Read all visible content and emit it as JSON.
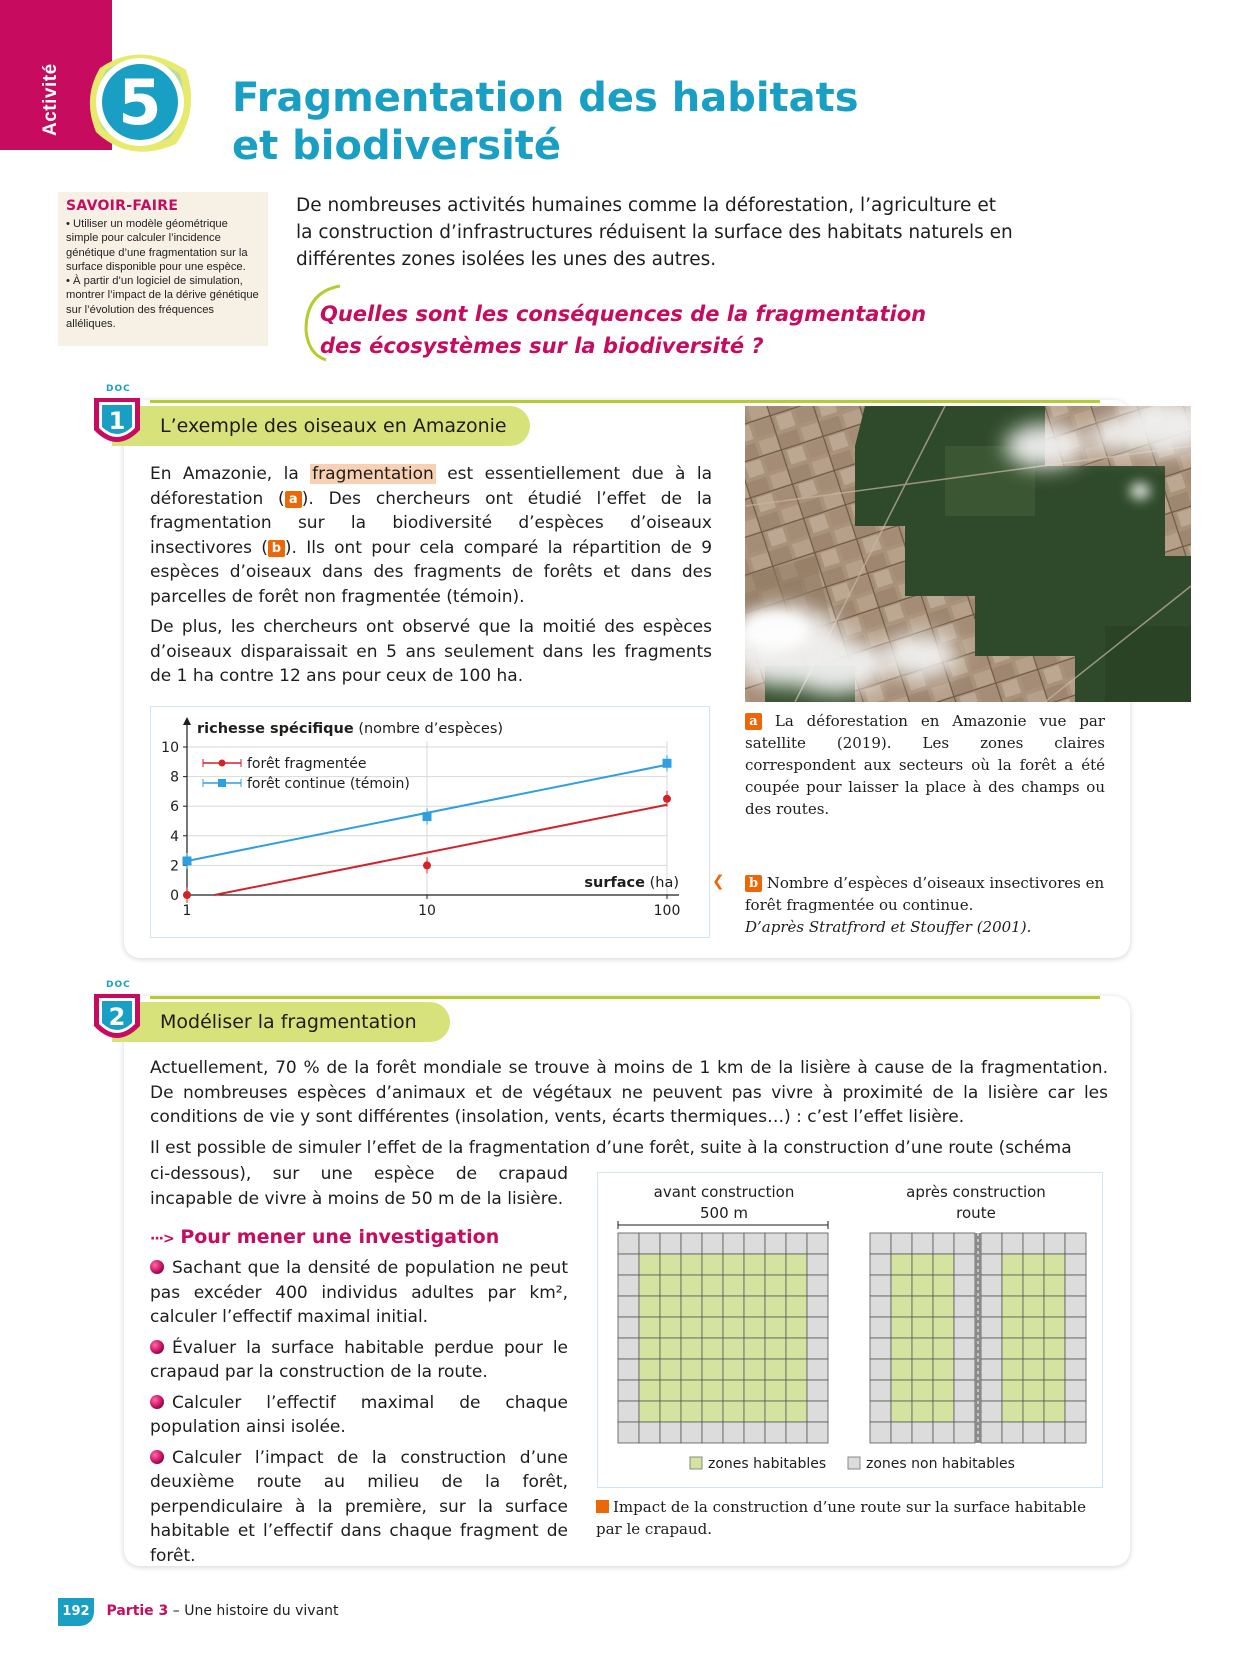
{
  "header": {
    "activity_label": "Activité",
    "activity_number": "5",
    "title_line1": "Fragmentation des habitats",
    "title_line2": "et biodiversité"
  },
  "savoir_faire": {
    "title": "SAVOIR-FAIRE",
    "items": [
      "• Utiliser un modèle géométrique simple pour calculer l’incidence génétique d’une fragmentation sur la surface disponible pour une espèce.",
      "• À partir d’un logiciel de simulation, montrer l’impact de la dérive génétique sur l’évolution des fréquences alléliques."
    ]
  },
  "intro": "De nombreuses activités humaines comme la déforestation, l’agriculture et la construction d’infrastructures réduisent la surface des habitats naturels en différentes zones isolées les unes des autres.",
  "question_line1": "Quelles sont les conséquences de la fragmentation",
  "question_line2": "des écosystèmes sur la biodiversité ?",
  "doc1": {
    "label": "DOC",
    "number": "1",
    "title": "L’exemple des oiseaux en Amazonie",
    "p1_a": "En Amazonie, la ",
    "p1_highlight": "fragmentation",
    "p1_b": " est essentiellement due à la déforestation (",
    "tag_a": "a",
    "p1_c": "). Des chercheurs ont étudié l’effet de la fragmentation sur la biodiversité d’espèces d’oiseaux insectivores (",
    "tag_b": "b",
    "p1_d": "). Ils ont pour cela comparé la répartition de 9 espèces d’oiseaux dans des fragments de forêts et dans des parcelles de forêt non fragmentée (témoin).",
    "p2": "De plus, les chercheurs ont observé que la moitié des espèces d’oiseaux disparaissait en 5 ans seulement dans les fragments de 1 ha contre 12 ans pour ceux de 100 ha.",
    "caption_a_tag": "a",
    "caption_a": "La déforestation en Amazonie vue par satellite (2019). Les zones claires correspondent aux secteurs où la forêt a été coupée pour laisser la place à des champs ou des routes.",
    "caption_b_tag": "b",
    "caption_b": "Nombre d’espèces d’oiseaux insectivores en forêt fragmentée ou continue.",
    "caption_b_source": "D’après Stratfrord et Stouffer (2001)."
  },
  "chart_data": {
    "type": "line",
    "ylabel_bold": "richesse spécifique",
    "ylabel_rest": " (nombre d’espèces)",
    "xlabel_bold": "surface",
    "xlabel_rest": " (ha)",
    "x_scale": "log",
    "x_ticks": [
      1,
      10,
      100
    ],
    "y_ticks": [
      0,
      2,
      4,
      6,
      8,
      10
    ],
    "ylim": [
      0,
      10
    ],
    "xlim": [
      1,
      100
    ],
    "grid": true,
    "legend_position": "top-left",
    "series": [
      {
        "name": "forêt fragmentée",
        "color": "#d3222a",
        "x": [
          1,
          10,
          100
        ],
        "values": [
          0,
          2,
          6.5
        ],
        "fit": [
          [
            1.3,
            0
          ],
          [
            100,
            6.1
          ]
        ]
      },
      {
        "name": "forêt continue (témoin)",
        "color": "#2e9fe0",
        "x": [
          1,
          10,
          100
        ],
        "values": [
          2.3,
          5.3,
          8.9
        ],
        "fit": [
          [
            1,
            2.3
          ],
          [
            100,
            8.8
          ]
        ]
      }
    ]
  },
  "doc2": {
    "label": "DOC",
    "number": "2",
    "title": "Modéliser la fragmentation",
    "p1": "Actuellement, 70 % de la forêt mondiale se trouve à moins de 1 km de la lisière à cause de la fragmentation. De nombreuses espèces d’animaux et de végétaux ne peuvent pas vivre à proximité de la lisière car les conditions de vie y sont différentes (insolation, vents, écarts thermiques…) : c’est l’effet lisière.",
    "p2_full": "Il est possible de simuler l’effet de la fragmentation d’une forêt, suite à la construction d’une route (schéma",
    "p2_cont": "ci-dessous), sur une espèce de crapaud incapable de vivre à moins de 50 m de la lisière.",
    "investigation_title": "Pour mener une investigation",
    "items": [
      "Sachant que la densité de population ne peut pas excéder 400 individus adultes par km², calculer l’effectif maximal initial.",
      "Évaluer la surface habitable perdue pour le crapaud par la construction de la route.",
      "Calculer l’effectif maximal de chaque population ainsi isolée.",
      "Calculer l’impact de la construction d’une deuxième route au milieu de la forêt, perpendiculaire à la première, sur la surface habitable et l’effectif dans chaque fragment de forêt."
    ],
    "diagram": {
      "before_title": "avant construction",
      "before_scale": "500 m",
      "after_title": "après construction",
      "after_road": "route",
      "legend_habitable": "zones habitables",
      "legend_non_habitable": "zones non habitables",
      "color_habitable": "#d4e4a0",
      "color_non_habitable": "#dcdcdc"
    },
    "caption": "Impact de la construction d’une route sur la surface habitable par le crapaud."
  },
  "footer": {
    "page": "192",
    "part": "Partie 3",
    "part_title": " – Une histoire du vivant"
  }
}
